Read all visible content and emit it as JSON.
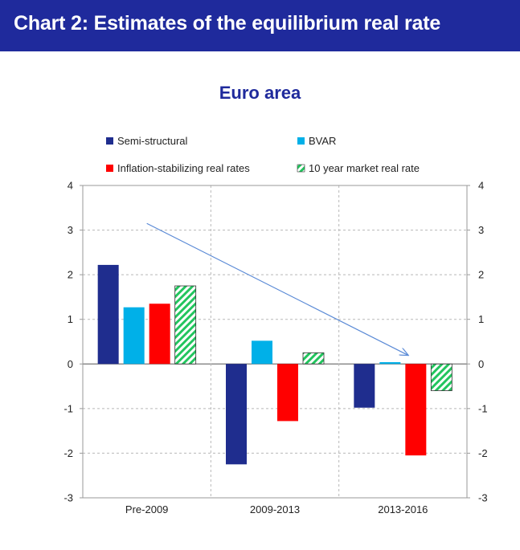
{
  "header": {
    "title": "Chart 2: Estimates of the equilibrium real rate",
    "background_color": "#1f2a9c"
  },
  "chart_data": {
    "type": "bar",
    "title": "Euro area",
    "categories": [
      "Pre-2009",
      "2009-2013",
      "2013-2016"
    ],
    "series": [
      {
        "name": "Semi-structural",
        "color": "#1f2d8e",
        "pattern": "solid",
        "values": [
          2.22,
          -2.25,
          -0.98
        ]
      },
      {
        "name": "BVAR",
        "color": "#00b0e8",
        "pattern": "solid",
        "values": [
          1.27,
          0.52,
          0.04
        ]
      },
      {
        "name": "Inflation-stabilizing real rates",
        "color": "#ff0000",
        "pattern": "solid",
        "values": [
          1.35,
          -1.28,
          -2.05
        ]
      },
      {
        "name": "10 year market real rate",
        "color": "#22c55e",
        "pattern": "hatched",
        "values": [
          1.75,
          0.25,
          -0.6
        ]
      }
    ],
    "ylim": [
      -3,
      4
    ],
    "yticks": [
      "4",
      "3",
      "2",
      "1",
      "0",
      "-1",
      "-2",
      "-3"
    ],
    "ytick_values": [
      4,
      3,
      2,
      1,
      0,
      -1,
      -2,
      -3
    ],
    "grid": "dashed",
    "xlabel": "",
    "ylabel": "",
    "legend": "top, two columns",
    "annotation": {
      "type": "arrow",
      "color": "#5a8ad6",
      "from": {
        "category": "Pre-2009",
        "value": 3.15
      },
      "to": {
        "category": "2013-2016",
        "value": 0.2
      }
    }
  }
}
